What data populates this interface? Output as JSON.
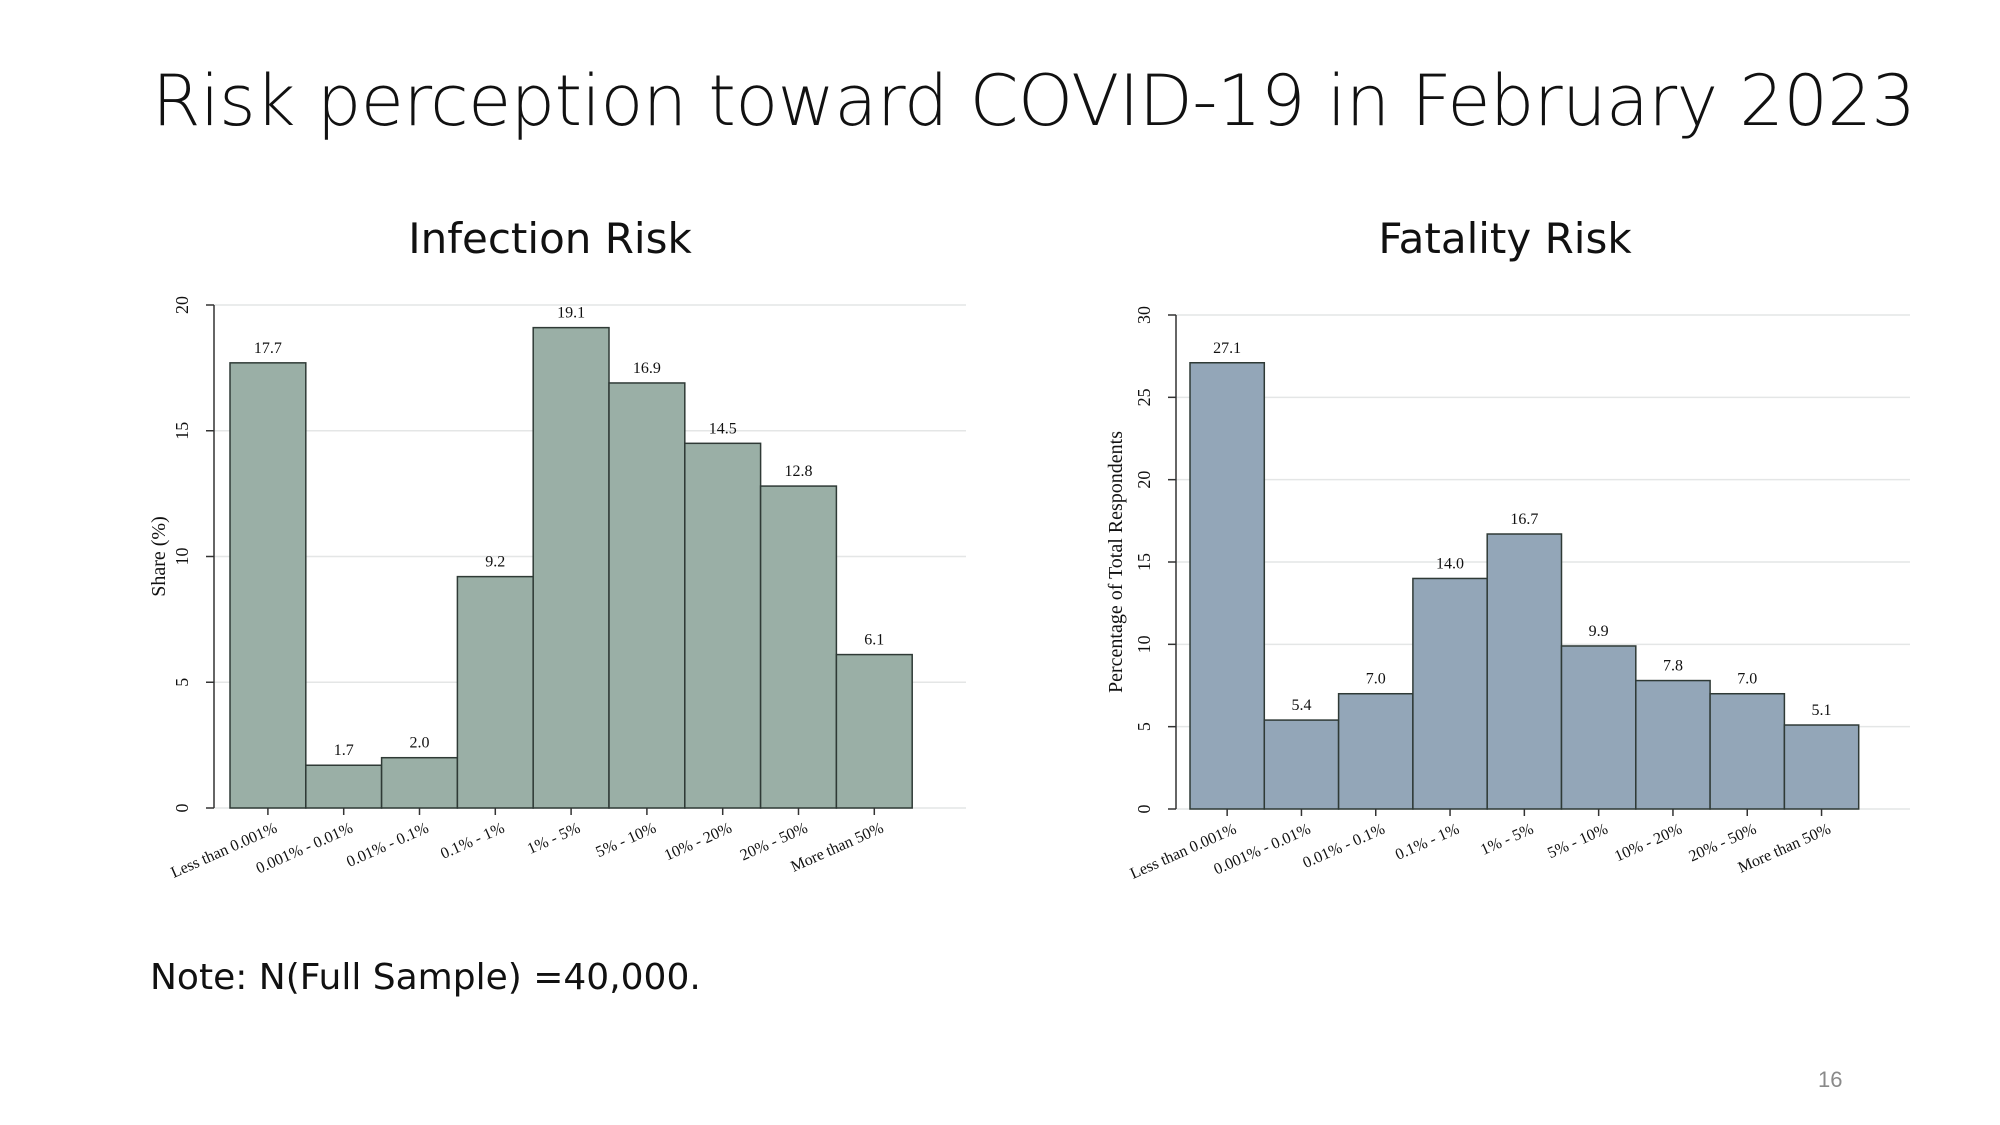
{
  "slide": {
    "title": "Risk perception toward COVID-19 in February 2023",
    "note": "Note: N(Full Sample) =40,000.",
    "page_number": "16"
  },
  "colors": {
    "infection_bar": "#9aafa6",
    "fatality_bar": "#93a6b8",
    "bar_stroke": "#2f3a36",
    "grid": "#e4e6e6"
  },
  "chart_data": [
    {
      "id": "infection",
      "type": "bar",
      "title": "Infection Risk",
      "xlabel": "",
      "ylabel": "Share (%)",
      "categories": [
        "Less than 0.001%",
        "0.001% - 0.01%",
        "0.01% - 0.1%",
        "0.1% - 1%",
        "1% - 5%",
        "5% - 10%",
        "10% - 20%",
        "20% - 50%",
        "More than 50%"
      ],
      "values": [
        17.7,
        1.7,
        2.0,
        9.2,
        19.1,
        16.9,
        14.5,
        12.8,
        6.1
      ],
      "data_labels": [
        "17.7",
        "1.7",
        "2.0",
        "9.2",
        "19.1",
        "16.9",
        "14.5",
        "12.8",
        "6.1"
      ],
      "ylim": [
        0,
        20
      ],
      "yticks": [
        0,
        5,
        10,
        15,
        20
      ],
      "grid": true
    },
    {
      "id": "fatality",
      "type": "bar",
      "title": "Fatality Risk",
      "xlabel": "",
      "ylabel": "Percentage of Total Respondents",
      "categories": [
        "Less than 0.001%",
        "0.001% - 0.01%",
        "0.01% - 0.1%",
        "0.1% - 1%",
        "1% - 5%",
        "5% - 10%",
        "10% - 20%",
        "20% - 50%",
        "More than 50%"
      ],
      "values": [
        27.1,
        5.4,
        7.0,
        14.0,
        16.7,
        9.9,
        7.8,
        7.0,
        5.1
      ],
      "data_labels": [
        "27.1",
        "5.4",
        "7.0",
        "14.0",
        "16.7",
        "9.9",
        "7.8",
        "7.0",
        "5.1"
      ],
      "ylim": [
        0,
        30
      ],
      "yticks": [
        0,
        5,
        10,
        15,
        20,
        25,
        30
      ],
      "grid": true
    }
  ]
}
